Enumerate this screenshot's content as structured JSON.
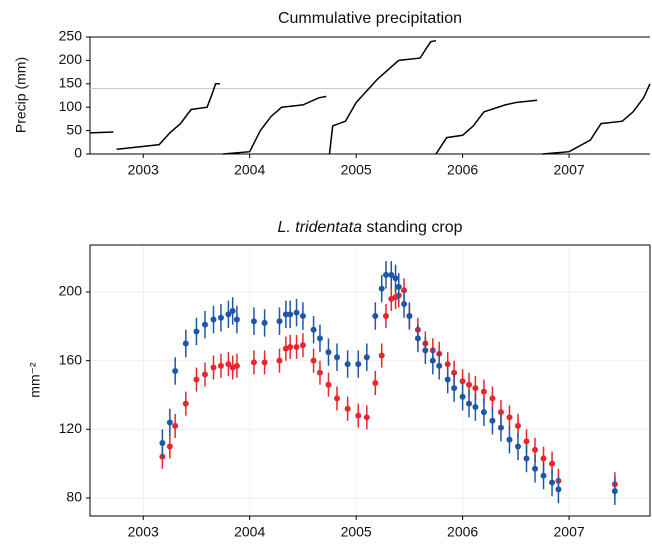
{
  "chart_data": [
    {
      "type": "line",
      "title": "Cummulative precipitation",
      "y_label": "Precip (mm)",
      "xlim": [
        2002.5,
        2007.76
      ],
      "xticks": [
        2003,
        2004,
        2005,
        2006,
        2007
      ],
      "ylim": [
        0,
        250
      ],
      "yticks": [
        0,
        50,
        100,
        150,
        200,
        250
      ],
      "hline": 140,
      "hline_color": "#cccccc",
      "grid": false,
      "series": [
        {
          "color": "#000000",
          "x": [
            2002.5,
            2002.72,
            null,
            2002.75,
            2002.95,
            2003.15,
            2003.25,
            2003.35,
            2003.45,
            2003.6,
            2003.65,
            2003.68,
            2003.72,
            null,
            2003.75,
            2004.0,
            2004.1,
            2004.2,
            2004.3,
            2004.5,
            2004.65,
            2004.72,
            null,
            2004.75,
            2004.78,
            2004.9,
            2005.0,
            2005.2,
            2005.4,
            2005.6,
            2005.7,
            2005.75,
            null,
            2005.75,
            2005.85,
            2006.0,
            2006.1,
            2006.2,
            2006.4,
            2006.5,
            2006.7,
            null,
            2006.75,
            2007.0,
            2007.2,
            2007.3,
            2007.5,
            2007.6,
            2007.7,
            2007.76
          ],
          "values": [
            45,
            47,
            null,
            10,
            15,
            20,
            45,
            65,
            95,
            100,
            130,
            150,
            150,
            null,
            0,
            5,
            50,
            80,
            100,
            105,
            120,
            123,
            null,
            0,
            60,
            70,
            110,
            160,
            200,
            205,
            240,
            242,
            null,
            0,
            35,
            40,
            60,
            90,
            105,
            110,
            115,
            null,
            0,
            5,
            30,
            65,
            70,
            90,
            120,
            150
          ]
        }
      ]
    },
    {
      "type": "scatter",
      "title_italic": "L. tridentata",
      "title": " standing crop",
      "y_label": "mm⁻²",
      "xlim": [
        2002.5,
        2007.76
      ],
      "xticks": [
        2003,
        2004,
        2005,
        2006,
        2007
      ],
      "ylim": [
        69.5,
        227.4
      ],
      "yticks": [
        80,
        120,
        160,
        200
      ],
      "grid": true,
      "x": [
        2003.18,
        2003.25,
        2003.3,
        2003.4,
        2003.5,
        2003.58,
        2003.66,
        2003.73,
        2003.8,
        2003.84,
        2003.88,
        2004.04,
        2004.14,
        2004.28,
        2004.34,
        2004.38,
        2004.44,
        2004.5,
        2004.6,
        2004.66,
        2004.74,
        2004.82,
        2004.92,
        2005.02,
        2005.1,
        2005.18,
        2005.24,
        2005.28,
        2005.33,
        2005.37,
        2005.4,
        2005.45,
        2005.5,
        2005.58,
        2005.65,
        2005.72,
        2005.78,
        2005.86,
        2005.92,
        2006.0,
        2006.06,
        2006.12,
        2006.2,
        2006.28,
        2006.36,
        2006.44,
        2006.52,
        2006.6,
        2006.68,
        2006.76,
        2006.84,
        2006.9,
        2007.43
      ],
      "series": [
        {
          "color": "#e8262e",
          "error": 7,
          "values": [
            104,
            110,
            122,
            135,
            149,
            152,
            156,
            157,
            158,
            156,
            157,
            159,
            159,
            160,
            167,
            168,
            168,
            169,
            160,
            153,
            146,
            138,
            132,
            128,
            127,
            147,
            163,
            186,
            196,
            197,
            198,
            201,
            186,
            178,
            170,
            166,
            164,
            158,
            153,
            148,
            146,
            144,
            142,
            138,
            130,
            127,
            122,
            113,
            108,
            103,
            100,
            90,
            88
          ]
        },
        {
          "color": "#1f56a8",
          "error": 8,
          "values": [
            112,
            124,
            154,
            170,
            177,
            181,
            184,
            185,
            187,
            189,
            184,
            183,
            182,
            183,
            187,
            187,
            188,
            186,
            178,
            173,
            165,
            162,
            158,
            158,
            162,
            186,
            202,
            210,
            210,
            208,
            203,
            193,
            186,
            173,
            166,
            160,
            157,
            149,
            144,
            139,
            135,
            133,
            130,
            125,
            121,
            114,
            110,
            103,
            97,
            93,
            89,
            85,
            84
          ]
        }
      ]
    }
  ]
}
